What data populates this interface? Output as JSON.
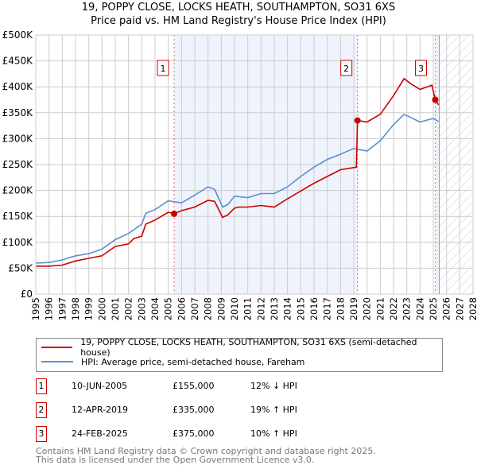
{
  "chart_data": {
    "type": "line",
    "title": "19, POPPY CLOSE, LOCKS HEATH, SOUTHAMPTON, SO31 6XS",
    "subtitle": "Price paid vs. HM Land Registry's House Price Index (HPI)",
    "xlim": [
      1995,
      2028
    ],
    "ylim": [
      0,
      500000
    ],
    "x_ticks": [
      "1995",
      "1996",
      "1997",
      "1998",
      "1999",
      "2000",
      "2001",
      "2002",
      "2003",
      "2004",
      "2005",
      "2006",
      "2007",
      "2008",
      "2009",
      "2010",
      "2011",
      "2012",
      "2013",
      "2014",
      "2015",
      "2016",
      "2017",
      "2018",
      "2019",
      "2020",
      "2021",
      "2022",
      "2023",
      "2024",
      "2025",
      "2026",
      "2027",
      "2028"
    ],
    "y_ticks": [
      {
        "v": 0,
        "label": "£0"
      },
      {
        "v": 50000,
        "label": "£50K"
      },
      {
        "v": 100000,
        "label": "£100K"
      },
      {
        "v": 150000,
        "label": "£150K"
      },
      {
        "v": 200000,
        "label": "£200K"
      },
      {
        "v": 250000,
        "label": "£250K"
      },
      {
        "v": 300000,
        "label": "£300K"
      },
      {
        "v": 350000,
        "label": "£350K"
      },
      {
        "v": 400000,
        "label": "£400K"
      },
      {
        "v": 450000,
        "label": "£450K"
      },
      {
        "v": 500000,
        "label": "£500K"
      }
    ],
    "grid": true,
    "series": [
      {
        "name": "19, POPPY CLOSE, LOCKS HEATH, SOUTHAMPTON, SO31 6XS (semi-detached house)",
        "color": "#cc0000",
        "x": [
          1995,
          1996,
          1997,
          1998,
          1999,
          2000,
          2001,
          2002,
          2002.4,
          2003,
          2003.3,
          2004,
          2005,
          2005.44,
          2006,
          2007,
          2008,
          2008.5,
          2009.1,
          2009.5,
          2010,
          2010.3,
          2011,
          2012,
          2013,
          2014,
          2015,
          2016,
          2017,
          2018,
          2019.2,
          2019.28,
          2020,
          2021,
          2022,
          2022.8,
          2023.3,
          2024,
          2024.9,
          2025.15,
          2025.4
        ],
        "y": [
          54000,
          54000,
          56000,
          64000,
          69000,
          74000,
          92000,
          97000,
          107000,
          112000,
          135000,
          143000,
          158000,
          155000,
          161000,
          168000,
          181000,
          179000,
          148000,
          153000,
          166000,
          168000,
          168000,
          171000,
          168000,
          184000,
          199000,
          214000,
          227000,
          240000,
          245000,
          335000,
          332000,
          347000,
          383000,
          416000,
          406000,
          395000,
          403000,
          375000,
          365000
        ]
      },
      {
        "name": "HPI: Average price, semi-detached house, Fareham",
        "color": "#5b8fd0",
        "x": [
          1995,
          1996,
          1997,
          1998,
          1999,
          2000,
          2001,
          2002,
          2003,
          2003.3,
          2004,
          2005,
          2006,
          2007,
          2008,
          2008.5,
          2009.1,
          2009.5,
          2010,
          2011,
          2012,
          2013,
          2014,
          2015,
          2016,
          2017,
          2018,
          2019,
          2020,
          2021,
          2022,
          2022.8,
          2024,
          2025,
          2025.4
        ],
        "y": [
          60000,
          61000,
          66000,
          74000,
          78000,
          87000,
          105000,
          117000,
          135000,
          156000,
          163000,
          180000,
          176000,
          191000,
          207000,
          202000,
          168000,
          173000,
          189000,
          186000,
          194000,
          194000,
          207000,
          227000,
          245000,
          260000,
          270000,
          281000,
          276000,
          296000,
          327000,
          347000,
          332000,
          339000,
          333000
        ]
      }
    ],
    "sales": [
      {
        "n": "1",
        "x": 2005.44,
        "y": 155000,
        "date": "10-JUN-2005",
        "price": "£155,000",
        "hpi": "12% ↓ HPI"
      },
      {
        "n": "2",
        "x": 2019.28,
        "y": 335000,
        "date": "12-APR-2019",
        "price": "£335,000",
        "hpi": "19% ↑ HPI"
      },
      {
        "n": "3",
        "x": 2025.15,
        "y": 375000,
        "date": "24-FEB-2025",
        "price": "£375,000",
        "hpi": "10% ↑ HPI"
      }
    ],
    "data_end": 2025.45
  },
  "legend": {
    "property": "19, POPPY CLOSE, LOCKS HEATH, SOUTHAMPTON, SO31 6XS (semi-detached house)",
    "hpi": "HPI: Average price, semi-detached house, Fareham"
  },
  "footer": {
    "line1": "Contains HM Land Registry data © Crown copyright and database right 2025.",
    "line2": "This data is licensed under the Open Government Licence v3.0."
  }
}
